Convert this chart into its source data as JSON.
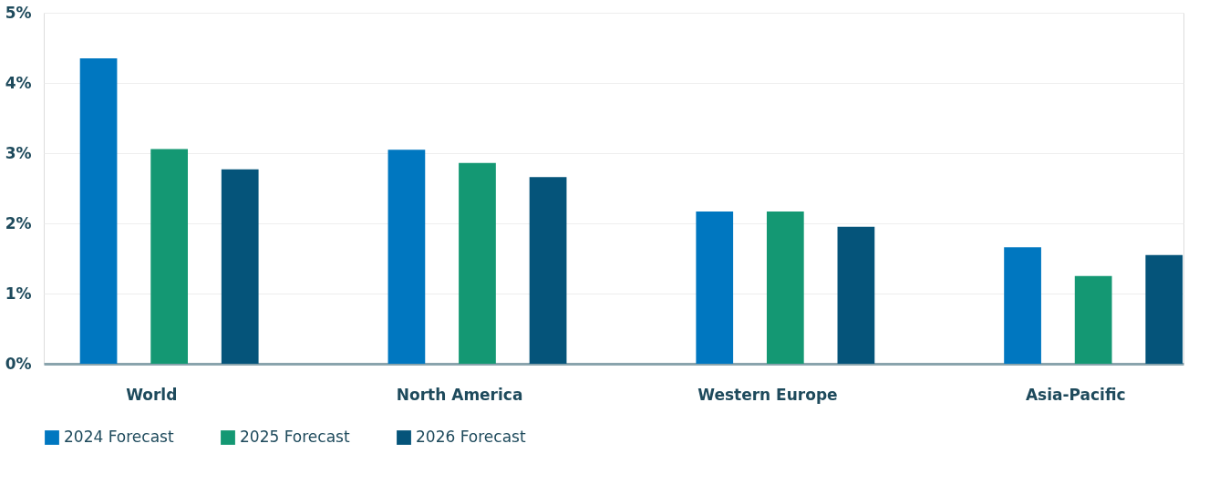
{
  "chart_data": {
    "type": "bar",
    "categories": [
      "World",
      "North America",
      "Western Europe",
      "Asia-Pacific"
    ],
    "series": [
      {
        "name": "2024 Forecast",
        "color": "#0077c0",
        "values": [
          4.35,
          3.05,
          2.17,
          1.66
        ]
      },
      {
        "name": "2025 Forecast",
        "color": "#149873",
        "values": [
          3.06,
          2.86,
          2.17,
          1.25
        ]
      },
      {
        "name": "2026 Forecast",
        "color": "#05547a",
        "values": [
          2.77,
          2.66,
          1.95,
          1.55
        ]
      }
    ],
    "ylim": [
      0,
      5
    ],
    "yticks": [
      {
        "value": 0,
        "label": "0%"
      },
      {
        "value": 1,
        "label": "1%"
      },
      {
        "value": 2,
        "label": "2%"
      },
      {
        "value": 3,
        "label": "3%"
      },
      {
        "value": 4,
        "label": "4%"
      },
      {
        "value": 5,
        "label": "5%"
      }
    ],
    "grid": "y",
    "legend": "bottom"
  }
}
